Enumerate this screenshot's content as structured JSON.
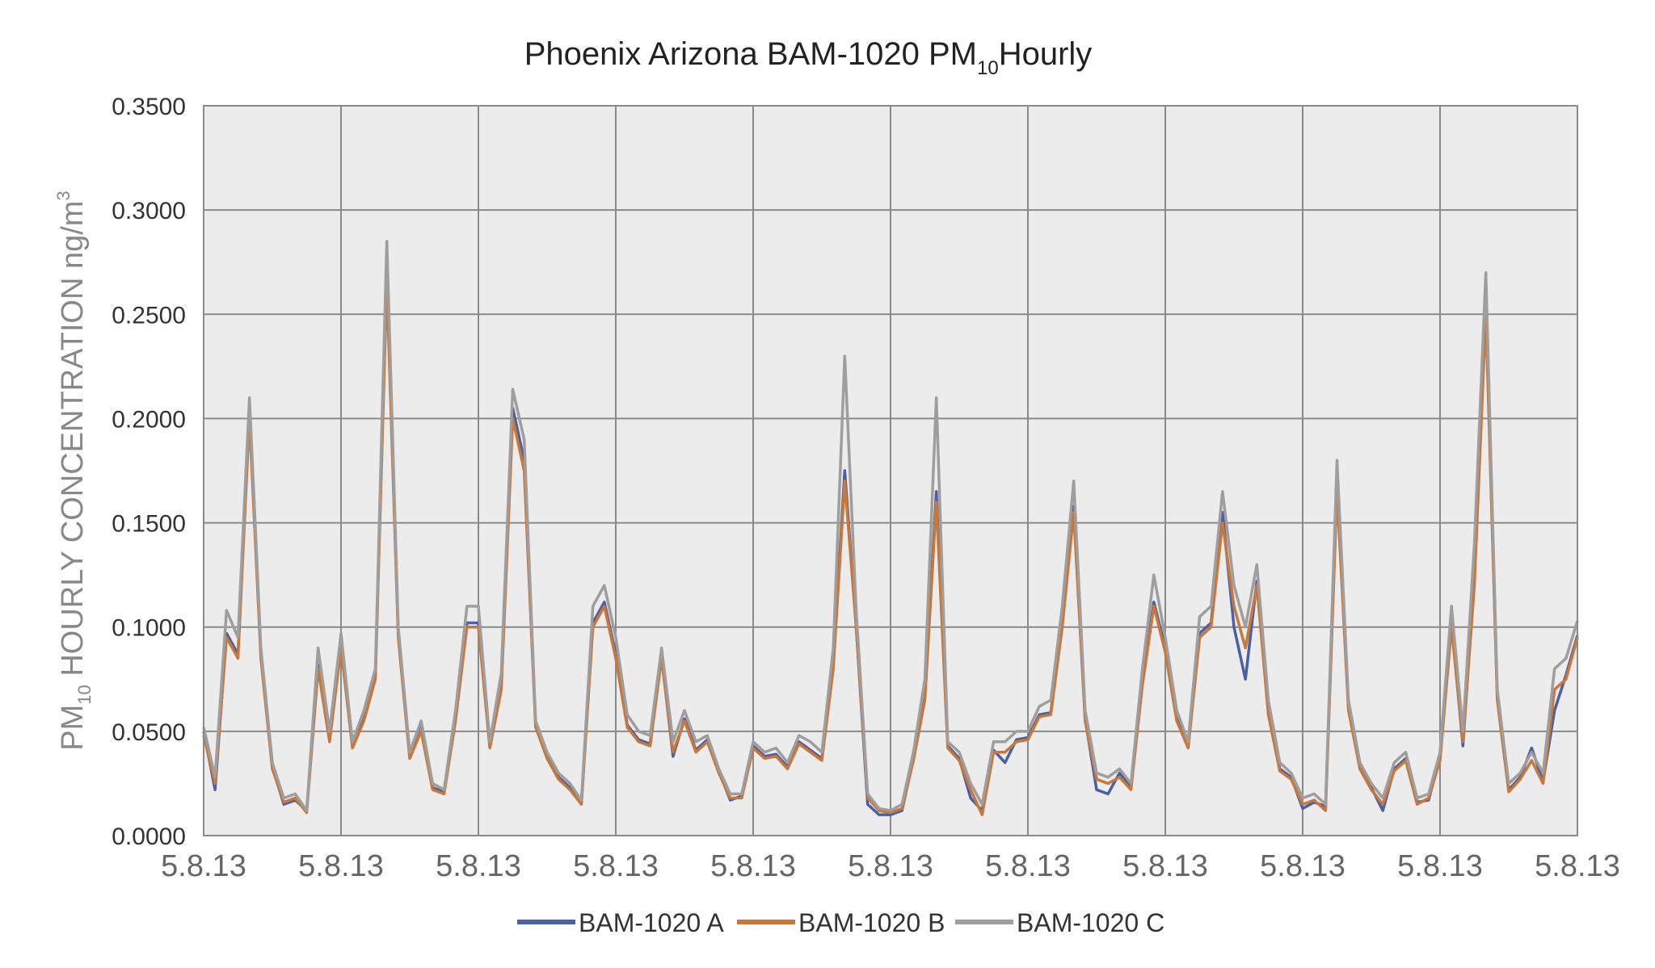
{
  "chart_data": {
    "type": "line",
    "title": [
      "Phoenix Arizona BAM-1020 PM",
      "10",
      "Hourly"
    ],
    "y_label": [
      "PM",
      "10",
      " HOURLY CONCENTRATION ng/m",
      "3"
    ],
    "x": [
      0,
      1,
      2,
      3,
      4,
      5,
      6,
      7,
      8,
      9,
      10,
      11,
      12,
      13,
      14,
      15,
      16,
      17,
      18,
      19,
      20,
      21,
      22,
      23,
      24,
      25,
      26,
      27,
      28,
      29,
      30,
      31,
      32,
      33,
      34,
      35,
      36,
      37,
      38,
      39,
      40,
      41,
      42,
      43,
      44,
      45,
      46,
      47,
      48,
      49,
      50,
      51,
      52,
      53,
      54,
      55,
      56,
      57,
      58,
      59,
      60,
      61,
      62,
      63,
      64,
      65,
      66,
      67,
      68,
      69,
      70,
      71,
      72,
      73,
      74,
      75,
      76,
      77,
      78,
      79,
      80,
      81,
      82,
      83,
      84,
      85,
      86,
      87,
      88,
      89,
      90,
      91,
      92,
      93,
      94,
      95,
      96,
      97,
      98,
      99,
      100,
      101,
      102,
      103,
      104,
      105,
      106,
      107,
      108,
      109,
      110,
      111,
      112,
      113,
      114,
      115,
      116,
      117,
      118,
      119,
      120
    ],
    "xlim": [
      0,
      120
    ],
    "xticks": [
      {
        "value": 0,
        "label": "5.8.13"
      },
      {
        "value": 12,
        "label": "5.8.13"
      },
      {
        "value": 24,
        "label": "5.8.13"
      },
      {
        "value": 36,
        "label": "5.8.13"
      },
      {
        "value": 48,
        "label": "5.8.13"
      },
      {
        "value": 60,
        "label": "5.8.13"
      },
      {
        "value": 72,
        "label": "5.8.13"
      },
      {
        "value": 84,
        "label": "5.8.13"
      },
      {
        "value": 96,
        "label": "5.8.13"
      },
      {
        "value": 108,
        "label": "5.8.13"
      },
      {
        "value": 120,
        "label": "5.8.13"
      }
    ],
    "ylim": [
      0,
      0.35
    ],
    "yticks": [
      {
        "value": 0,
        "label": "0.0000"
      },
      {
        "value": 0.05,
        "label": "0.0500"
      },
      {
        "value": 0.1,
        "label": "0.1000"
      },
      {
        "value": 0.15,
        "label": "0.1500"
      },
      {
        "value": 0.2,
        "label": "0.2000"
      },
      {
        "value": 0.25,
        "label": "0.2500"
      },
      {
        "value": 0.3,
        "label": "0.3000"
      },
      {
        "value": 0.35,
        "label": "0.3500"
      }
    ],
    "grid": true,
    "legend": "bottom",
    "series": [
      {
        "name": "BAM-1020 A",
        "color": "#4a5fa5",
        "values": [
          0.05,
          0.022,
          0.097,
          0.087,
          0.205,
          0.087,
          0.033,
          0.015,
          0.017,
          0.012,
          0.082,
          0.046,
          0.092,
          0.043,
          0.056,
          0.077,
          0.27,
          0.097,
          0.04,
          0.054,
          0.023,
          0.021,
          0.056,
          0.102,
          0.102,
          0.043,
          0.072,
          0.205,
          0.18,
          0.053,
          0.038,
          0.028,
          0.023,
          0.016,
          0.102,
          0.112,
          0.087,
          0.053,
          0.046,
          0.044,
          0.086,
          0.038,
          0.056,
          0.041,
          0.046,
          0.031,
          0.017,
          0.019,
          0.043,
          0.038,
          0.039,
          0.033,
          0.045,
          0.041,
          0.037,
          0.082,
          0.175,
          0.1,
          0.015,
          0.01,
          0.01,
          0.012,
          0.037,
          0.066,
          0.165,
          0.043,
          0.037,
          0.018,
          0.012,
          0.041,
          0.035,
          0.046,
          0.047,
          0.058,
          0.059,
          0.102,
          0.158,
          0.056,
          0.022,
          0.02,
          0.03,
          0.023,
          0.074,
          0.112,
          0.09,
          0.056,
          0.043,
          0.097,
          0.102,
          0.155,
          0.1,
          0.075,
          0.122,
          0.06,
          0.032,
          0.028,
          0.013,
          0.016,
          0.014,
          0.168,
          0.062,
          0.033,
          0.023,
          0.012,
          0.032,
          0.037,
          0.016,
          0.017,
          0.038,
          0.102,
          0.043,
          0.125,
          0.255,
          0.066,
          0.022,
          0.028,
          0.042,
          0.026,
          0.06,
          0.077,
          0.096
        ]
      },
      {
        "name": "BAM-1020 B",
        "color": "#c8783a",
        "values": [
          0.048,
          0.025,
          0.095,
          0.085,
          0.2,
          0.085,
          0.032,
          0.016,
          0.018,
          0.011,
          0.08,
          0.045,
          0.09,
          0.042,
          0.055,
          0.075,
          0.265,
          0.095,
          0.037,
          0.05,
          0.022,
          0.02,
          0.055,
          0.1,
          0.1,
          0.042,
          0.07,
          0.2,
          0.175,
          0.052,
          0.037,
          0.027,
          0.022,
          0.015,
          0.1,
          0.11,
          0.085,
          0.052,
          0.045,
          0.043,
          0.085,
          0.04,
          0.055,
          0.04,
          0.045,
          0.03,
          0.018,
          0.018,
          0.042,
          0.037,
          0.038,
          0.032,
          0.044,
          0.04,
          0.036,
          0.08,
          0.17,
          0.1,
          0.018,
          0.012,
          0.011,
          0.013,
          0.036,
          0.065,
          0.16,
          0.042,
          0.036,
          0.022,
          0.01,
          0.04,
          0.04,
          0.045,
          0.046,
          0.057,
          0.058,
          0.1,
          0.155,
          0.055,
          0.027,
          0.025,
          0.028,
          0.022,
          0.072,
          0.11,
          0.088,
          0.055,
          0.042,
          0.095,
          0.1,
          0.15,
          0.11,
          0.09,
          0.12,
          0.058,
          0.031,
          0.027,
          0.015,
          0.017,
          0.012,
          0.165,
          0.06,
          0.032,
          0.022,
          0.015,
          0.031,
          0.036,
          0.015,
          0.018,
          0.036,
          0.1,
          0.045,
          0.12,
          0.25,
          0.065,
          0.021,
          0.027,
          0.036,
          0.025,
          0.07,
          0.075,
          0.095
        ]
      },
      {
        "name": "BAM-1020 C",
        "color": "#9e9e9e",
        "values": [
          0.052,
          0.028,
          0.108,
          0.095,
          0.21,
          0.09,
          0.035,
          0.018,
          0.02,
          0.012,
          0.09,
          0.05,
          0.097,
          0.045,
          0.06,
          0.08,
          0.285,
          0.1,
          0.04,
          0.055,
          0.025,
          0.022,
          0.06,
          0.11,
          0.11,
          0.045,
          0.078,
          0.214,
          0.19,
          0.055,
          0.04,
          0.03,
          0.025,
          0.017,
          0.11,
          0.12,
          0.095,
          0.058,
          0.05,
          0.048,
          0.09,
          0.045,
          0.06,
          0.045,
          0.048,
          0.032,
          0.02,
          0.02,
          0.045,
          0.04,
          0.042,
          0.035,
          0.048,
          0.045,
          0.04,
          0.09,
          0.23,
          0.108,
          0.02,
          0.013,
          0.012,
          0.015,
          0.04,
          0.075,
          0.21,
          0.045,
          0.04,
          0.025,
          0.015,
          0.045,
          0.045,
          0.05,
          0.05,
          0.062,
          0.065,
          0.11,
          0.17,
          0.06,
          0.03,
          0.028,
          0.032,
          0.025,
          0.08,
          0.125,
          0.095,
          0.06,
          0.045,
          0.105,
          0.11,
          0.165,
          0.12,
          0.1,
          0.13,
          0.065,
          0.035,
          0.03,
          0.018,
          0.02,
          0.015,
          0.18,
          0.065,
          0.035,
          0.025,
          0.018,
          0.035,
          0.04,
          0.018,
          0.02,
          0.04,
          0.11,
          0.05,
          0.14,
          0.27,
          0.07,
          0.025,
          0.03,
          0.04,
          0.03,
          0.08,
          0.085,
          0.103
        ]
      }
    ]
  }
}
